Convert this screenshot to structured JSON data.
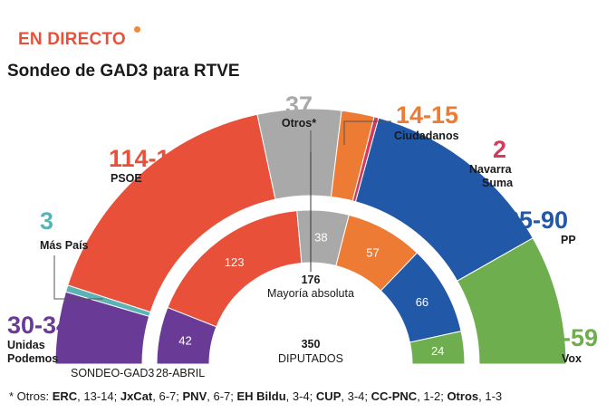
{
  "header": {
    "live_label": "EN DIRECTO",
    "title": "Sondeo de GAD3 para RTVE"
  },
  "colors": {
    "podemos": "#6a3a97",
    "maspais": "#5bb3b5",
    "psoe": "#e8503a",
    "otros": "#a9a9a9",
    "cs": "#ee7b34",
    "navarra": "#d13b5c",
    "pp": "#2158a8",
    "vox": "#6fae4e",
    "accent": "#e8503a"
  },
  "chart_data": {
    "type": "parliament-semicircle",
    "total_seats": 350,
    "total_label": "350",
    "total_sublabel": "DIPUTADOS",
    "majority_value": "176",
    "majority_label": "Mayoría absoluta",
    "outer_ring_label": "SONDEO-GAD3",
    "inner_ring_label": "28-ABRIL",
    "outer": [
      {
        "party": "Unidas Podemos",
        "range": "30-34",
        "seats": 32,
        "color": "#6a3a97"
      },
      {
        "party": "Más País",
        "range": "3",
        "seats": 3,
        "color": "#5bb3b5"
      },
      {
        "party": "PSOE",
        "range": "114-119",
        "seats": 116.5,
        "color": "#e8503a"
      },
      {
        "party": "Otros*",
        "range": "37",
        "seats": 37,
        "color": "#a9a9a9"
      },
      {
        "party": "Ciudadanos",
        "range": "14-15",
        "seats": 14.5,
        "color": "#ee7b34"
      },
      {
        "party": "Navarra Suma",
        "range": "2",
        "seats": 2,
        "color": "#d13b5c"
      },
      {
        "party": "PP",
        "range": "85-90",
        "seats": 87.5,
        "color": "#2158a8"
      },
      {
        "party": "Vox",
        "range": "56-59",
        "seats": 57.5,
        "color": "#6fae4e"
      }
    ],
    "inner": [
      {
        "party": "Unidas Podemos",
        "value": "42",
        "seats": 42,
        "color": "#6a3a97"
      },
      {
        "party": "PSOE",
        "value": "123",
        "seats": 123,
        "color": "#e8503a"
      },
      {
        "party": "Otros",
        "value": "38",
        "seats": 38,
        "color": "#a9a9a9"
      },
      {
        "party": "Ciudadanos",
        "value": "57",
        "seats": 57,
        "color": "#ee7b34"
      },
      {
        "party": "PP",
        "value": "66",
        "seats": 66,
        "color": "#2158a8"
      },
      {
        "party": "Vox",
        "value": "24",
        "seats": 24,
        "color": "#6fae4e"
      }
    ]
  },
  "footnote": {
    "prefix": "* Otros: ",
    "items": [
      {
        "party": "ERC",
        "range": "13-14"
      },
      {
        "party": "JxCat",
        "range": "6-7"
      },
      {
        "party": "PNV",
        "range": "6-7"
      },
      {
        "party": "EH Bildu",
        "range": "3-4"
      },
      {
        "party": "CUP",
        "range": "3-4"
      },
      {
        "party": "CC-PNC",
        "range": " 1-2"
      },
      {
        "party": "Otros",
        "range": "1-3"
      }
    ]
  }
}
